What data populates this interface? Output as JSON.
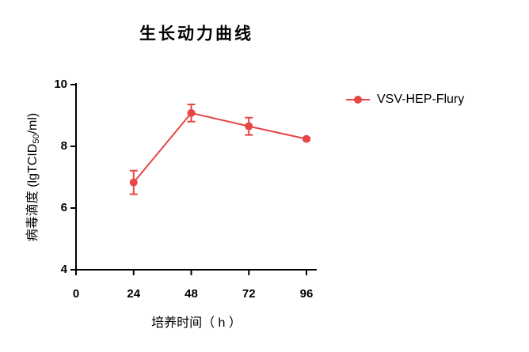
{
  "chart_data": {
    "type": "line",
    "title": "生长动力曲线",
    "x_label": "培养时间（ h ）",
    "y_label": [
      "病毒滴度 (lgTCID",
      "50",
      "/ml)"
    ],
    "x": [
      24,
      48,
      72,
      96
    ],
    "series": [
      {
        "name": "VSV-HEP-Flury",
        "color": "#e84545",
        "values": [
          6.83,
          9.08,
          8.65,
          8.24
        ],
        "errors": [
          0.38,
          0.28,
          0.28,
          0.04
        ]
      }
    ],
    "xlim": [
      0,
      96
    ],
    "xticks": [
      0,
      24,
      48,
      72,
      96
    ],
    "ylim": [
      4,
      10
    ],
    "yticks": [
      4,
      6,
      8,
      10
    ],
    "legend": "right"
  }
}
